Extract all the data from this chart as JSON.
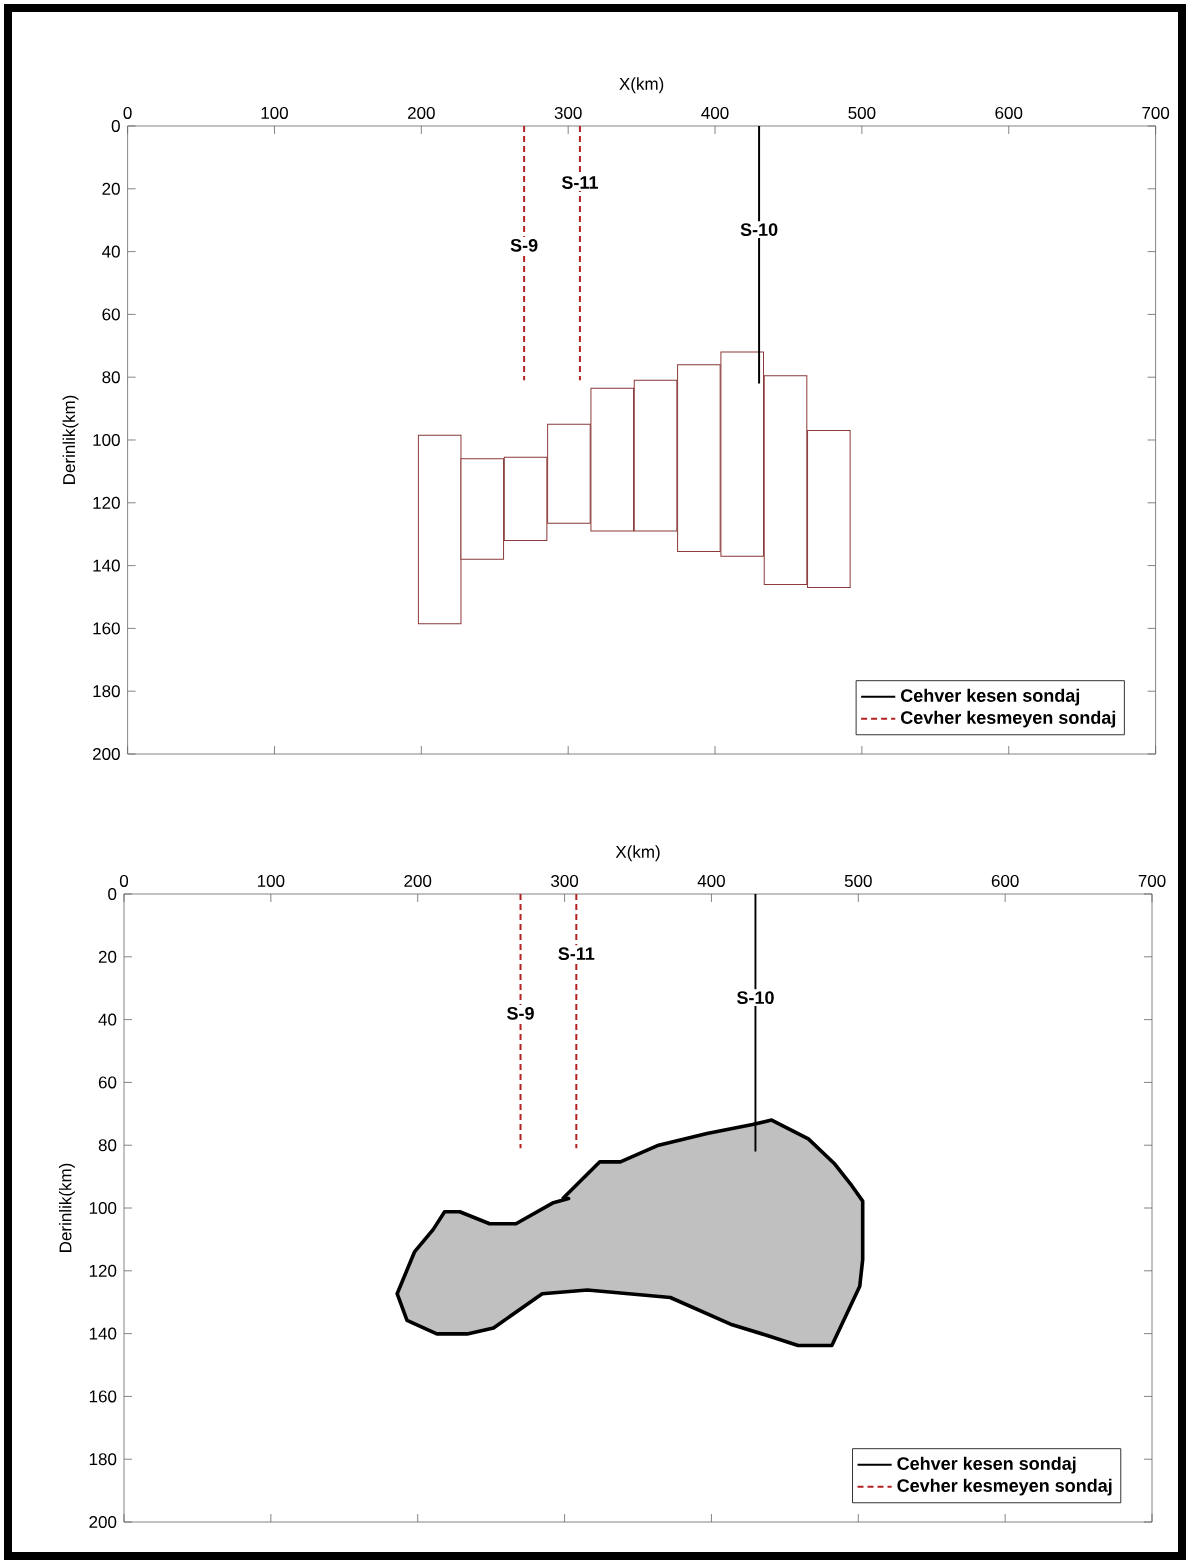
{
  "chart_data": [
    {
      "type": "bar",
      "xlabel": "X(km)",
      "ylabel": "Derinlik(km)",
      "xlim": [
        0,
        700
      ],
      "xticks": [
        0,
        100,
        200,
        300,
        400,
        500,
        600,
        700
      ],
      "ylim": [
        200,
        0
      ],
      "yticks": [
        0,
        20,
        40,
        60,
        80,
        100,
        120,
        140,
        160,
        180,
        200
      ],
      "legend": "bottom right",
      "series": [
        {
          "color": "#8b3a3a",
          "x": [
            212.5,
            241.5,
            271,
            300.5,
            330,
            359.5,
            389,
            418.5,
            448,
            477.5
          ],
          "base": [
            98.5,
            106,
            105.5,
            95,
            83.5,
            81,
            76,
            72,
            79.5,
            97
          ],
          "values": [
            60,
            32,
            26.5,
            31.5,
            45.5,
            48,
            59.5,
            65,
            66.5,
            50
          ]
        },
        {
          "type": "line",
          "name": "Cehver kesen sondaj",
          "color": "#000000",
          "line_style": "solid",
          "x": [
            430,
            430
          ],
          "values": [
            0,
            82
          ]
        },
        {
          "type": "line",
          "name": "Cevher kesmeyen sondaj",
          "color": "#b22222",
          "line_style": "dashed",
          "x": [
            270,
            270,
            null,
            308,
            308
          ],
          "values": [
            0,
            81,
            null,
            0,
            81
          ]
        }
      ],
      "annotations": [
        {
          "text": "S-9",
          "x": 270,
          "y": 38
        },
        {
          "text": "S-11",
          "x": 308,
          "y": 18
        },
        {
          "text": "S-10",
          "x": 430,
          "y": 33
        }
      ]
    },
    {
      "type": "area",
      "xlabel": "X(km)",
      "ylabel": "Derinlik(km)",
      "xlim": [
        0,
        700
      ],
      "xticks": [
        0,
        100,
        200,
        300,
        400,
        500,
        600,
        700
      ],
      "ylim": [
        200,
        0
      ],
      "yticks": [
        0,
        20,
        40,
        60,
        80,
        100,
        120,
        140,
        160,
        180,
        200
      ],
      "legend": "bottom right",
      "series": [
        {
          "color": "#c0c0c0",
          "x": [
            299,
            324,
            338,
            364,
            397,
            428,
            441,
            466,
            484,
            494.5,
            503,
            503,
            501,
            482,
            459,
            438,
            413,
            372,
            315.5,
            284.8,
            251.6,
            233.7,
            213,
            192.7,
            186,
            197.8,
            210.6,
            218.3,
            228.6,
            249,
            266.9,
            292.4,
            302.7
          ],
          "values": [
            96.9,
            85.3,
            85.3,
            80,
            76.3,
            73.4,
            72,
            78,
            86,
            92.2,
            97.8,
            116.4,
            124.9,
            143.8,
            143.8,
            140.6,
            137,
            128.5,
            126.1,
            127.3,
            138.2,
            140.1,
            140.1,
            135.8,
            127.3,
            114,
            106.8,
            101.2,
            101.2,
            105,
            105,
            98.3,
            97
          ]
        },
        {
          "type": "line",
          "name": "Cehver kesen sondaj",
          "color": "#000000",
          "line_style": "solid",
          "x": [
            430,
            430
          ],
          "values": [
            0,
            82
          ]
        },
        {
          "type": "line",
          "name": "Cevher kesmeyen sondaj",
          "color": "#b22222",
          "line_style": "dashed",
          "x": [
            270,
            270,
            null,
            308,
            308
          ],
          "values": [
            0,
            81,
            null,
            0,
            81
          ]
        }
      ],
      "annotations": [
        {
          "text": "S-9",
          "x": 270,
          "y": 38
        },
        {
          "text": "S-11",
          "x": 308,
          "y": 19
        },
        {
          "text": "S-10",
          "x": 430,
          "y": 33
        }
      ]
    }
  ]
}
